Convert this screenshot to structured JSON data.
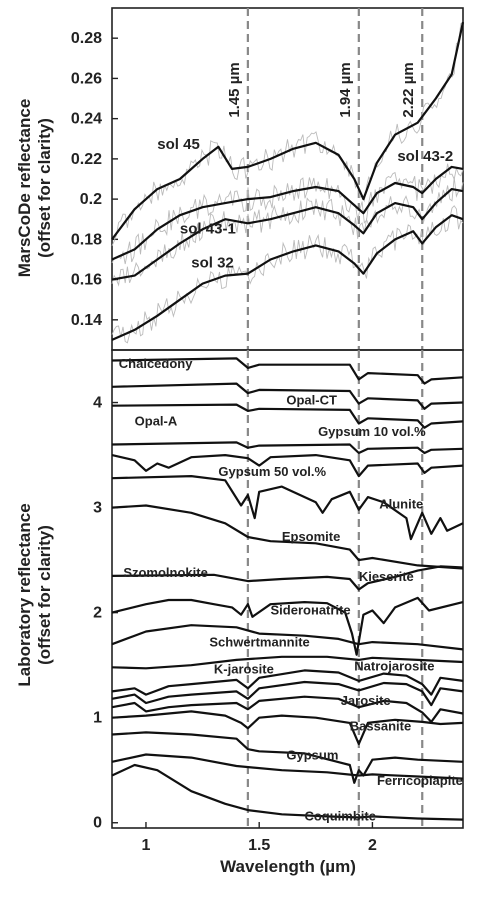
{
  "chart_data": [
    {
      "type": "line",
      "panel": "top",
      "ylabel": [
        "MarsCoDe reflectance",
        "(offset for clarity)"
      ],
      "xlim": [
        0.85,
        2.4
      ],
      "ylim": [
        0.125,
        0.295
      ],
      "yticks": [
        0.14,
        0.16,
        0.18,
        0.2,
        0.22,
        0.24,
        0.26,
        0.28
      ],
      "ytick_labels": [
        "0.14",
        "0.16",
        "0.18",
        "0.2",
        "0.22",
        "0.24",
        "0.26",
        "0.28"
      ],
      "reference_lines": [
        {
          "x": 1.45,
          "label": "1.45 µm"
        },
        {
          "x": 1.94,
          "label": "1.94 µm"
        },
        {
          "x": 2.22,
          "label": "2.22 µm"
        }
      ],
      "series": [
        {
          "name": "sol 45",
          "label_xy": [
            1.05,
            0.225
          ],
          "x": [
            0.85,
            0.95,
            1.05,
            1.15,
            1.25,
            1.32,
            1.38,
            1.45,
            1.55,
            1.65,
            1.75,
            1.85,
            1.92,
            1.96,
            2.02,
            2.1,
            2.2,
            2.28,
            2.35,
            2.4
          ],
          "y": [
            0.18,
            0.195,
            0.205,
            0.21,
            0.22,
            0.226,
            0.215,
            0.216,
            0.22,
            0.225,
            0.228,
            0.222,
            0.21,
            0.2,
            0.218,
            0.232,
            0.238,
            0.25,
            0.262,
            0.288
          ]
        },
        {
          "name": "sol 43-2",
          "label_xy": [
            2.11,
            0.219
          ],
          "x": [
            0.85,
            0.95,
            1.05,
            1.15,
            1.25,
            1.35,
            1.45,
            1.55,
            1.65,
            1.75,
            1.85,
            1.92,
            1.96,
            2.02,
            2.1,
            2.18,
            2.22,
            2.28,
            2.35,
            2.4
          ],
          "y": [
            0.17,
            0.175,
            0.185,
            0.192,
            0.196,
            0.198,
            0.2,
            0.201,
            0.204,
            0.206,
            0.204,
            0.197,
            0.193,
            0.203,
            0.208,
            0.206,
            0.203,
            0.21,
            0.216,
            0.215
          ]
        },
        {
          "name": "sol 43-1",
          "label_xy": [
            1.15,
            0.183
          ],
          "x": [
            0.85,
            0.95,
            1.05,
            1.15,
            1.25,
            1.35,
            1.45,
            1.55,
            1.65,
            1.75,
            1.85,
            1.92,
            1.96,
            2.02,
            2.1,
            2.18,
            2.22,
            2.28,
            2.35,
            2.4
          ],
          "y": [
            0.16,
            0.162,
            0.17,
            0.178,
            0.185,
            0.19,
            0.188,
            0.19,
            0.193,
            0.196,
            0.193,
            0.187,
            0.183,
            0.193,
            0.198,
            0.196,
            0.19,
            0.198,
            0.205,
            0.204
          ]
        },
        {
          "name": "sol 32",
          "label_xy": [
            1.2,
            0.166
          ],
          "x": [
            0.85,
            0.95,
            1.05,
            1.15,
            1.25,
            1.35,
            1.45,
            1.55,
            1.65,
            1.75,
            1.85,
            1.92,
            1.96,
            2.02,
            2.1,
            2.18,
            2.22,
            2.28,
            2.35,
            2.4
          ],
          "y": [
            0.13,
            0.135,
            0.142,
            0.15,
            0.158,
            0.162,
            0.163,
            0.17,
            0.174,
            0.177,
            0.174,
            0.168,
            0.163,
            0.173,
            0.18,
            0.184,
            0.178,
            0.186,
            0.192,
            0.19
          ]
        }
      ]
    },
    {
      "type": "line",
      "panel": "bottom",
      "ylabel": [
        "Laboratory reflectance",
        "(offset for clarity)"
      ],
      "xlabel": "Wavelength (µm)",
      "xlim": [
        0.85,
        2.4
      ],
      "ylim": [
        -0.05,
        4.5
      ],
      "xticks": [
        1,
        1.5,
        2
      ],
      "xtick_labels": [
        "1",
        "1.5",
        "2"
      ],
      "yticks": [
        0,
        1,
        2,
        3,
        4
      ],
      "ytick_labels": [
        "0",
        "1",
        "2",
        "3",
        "4"
      ],
      "series": [
        {
          "name": "Chalcedony",
          "label_xy": [
            0.88,
            4.33
          ],
          "x": [
            0.85,
            1.4,
            1.45,
            1.5,
            1.9,
            1.94,
            1.98,
            2.2,
            2.23,
            2.26,
            2.4
          ],
          "y": [
            4.4,
            4.42,
            4.33,
            4.36,
            4.36,
            4.22,
            4.28,
            4.26,
            4.18,
            4.22,
            4.24
          ]
        },
        {
          "name": "Opal-CT",
          "label_xy": [
            1.62,
            3.98
          ],
          "x": [
            0.85,
            1.4,
            1.45,
            1.5,
            1.9,
            1.94,
            1.98,
            2.2,
            2.23,
            2.26,
            2.4
          ],
          "y": [
            4.15,
            4.18,
            4.09,
            4.12,
            4.11,
            3.99,
            4.04,
            4.02,
            3.94,
            3.99,
            4.0
          ]
        },
        {
          "name": "Opal-A",
          "label_xy": [
            0.95,
            3.78
          ],
          "x": [
            0.85,
            1.4,
            1.45,
            1.5,
            1.9,
            1.94,
            1.98,
            2.2,
            2.23,
            2.26,
            2.4
          ],
          "y": [
            3.97,
            3.98,
            3.92,
            3.94,
            3.93,
            3.8,
            3.85,
            3.83,
            3.76,
            3.8,
            3.82
          ]
        },
        {
          "name": "Gypsum 10 vol.%",
          "label_xy": [
            1.76,
            3.68
          ],
          "x": [
            0.85,
            1.4,
            1.45,
            1.5,
            1.9,
            1.94,
            1.98,
            2.2,
            2.23,
            2.26,
            2.4
          ],
          "y": [
            3.6,
            3.62,
            3.57,
            3.59,
            3.6,
            3.52,
            3.56,
            3.57,
            3.52,
            3.55,
            3.56
          ]
        },
        {
          "name": "Gypsum 50 vol.%",
          "label_xy": [
            1.32,
            3.3
          ],
          "x": [
            0.85,
            0.95,
            1.0,
            1.05,
            1.1,
            1.2,
            1.35,
            1.45,
            1.5,
            1.55,
            1.75,
            1.9,
            1.94,
            1.98,
            2.2,
            2.23,
            2.26,
            2.4
          ],
          "y": [
            3.5,
            3.45,
            3.35,
            3.42,
            3.38,
            3.48,
            3.5,
            3.47,
            3.4,
            3.48,
            3.5,
            3.45,
            3.3,
            3.4,
            3.42,
            3.33,
            3.38,
            3.4
          ]
        },
        {
          "name": "Alunite",
          "label_xy": [
            2.03,
            2.99
          ],
          "x": [
            0.85,
            1.2,
            1.35,
            1.42,
            1.45,
            1.48,
            1.5,
            1.6,
            1.75,
            1.78,
            1.82,
            1.9,
            1.94,
            1.98,
            2.05,
            2.15,
            2.17,
            2.22,
            2.26,
            2.3,
            2.33,
            2.4
          ],
          "y": [
            3.28,
            3.3,
            3.26,
            3.02,
            3.12,
            2.9,
            3.15,
            3.2,
            3.05,
            2.95,
            3.08,
            3.15,
            2.98,
            3.1,
            3.05,
            2.9,
            2.7,
            2.95,
            2.75,
            2.9,
            2.78,
            2.85
          ]
        },
        {
          "name": "Epsomite",
          "label_xy": [
            1.6,
            2.68
          ],
          "x": [
            0.85,
            1.0,
            1.2,
            1.35,
            1.45,
            1.55,
            1.75,
            1.9,
            1.94,
            2.0,
            2.2,
            2.4
          ],
          "y": [
            3.0,
            3.02,
            2.95,
            2.85,
            2.72,
            2.68,
            2.66,
            2.6,
            2.5,
            2.52,
            2.45,
            2.42
          ]
        },
        {
          "name": "Kieserite",
          "label_xy": [
            1.94,
            2.3
          ],
          "x": [
            0.85,
            1.3,
            1.45,
            1.6,
            1.8,
            1.9,
            1.94,
            1.98,
            2.1,
            2.2,
            2.3,
            2.4
          ],
          "y": [
            2.35,
            2.36,
            2.3,
            2.32,
            2.34,
            2.32,
            2.22,
            2.28,
            2.34,
            2.4,
            2.44,
            2.43
          ]
        },
        {
          "name": "Szomolnokite",
          "label_xy": [
            0.9,
            2.34
          ],
          "x": [
            0.85,
            1.0,
            1.1,
            1.2,
            1.3,
            1.38,
            1.42,
            1.45,
            1.47,
            1.55,
            1.7,
            1.8,
            1.88,
            1.91,
            1.93,
            1.96,
            2.0,
            2.05,
            2.1,
            2.2,
            2.25,
            2.4
          ],
          "y": [
            2.0,
            2.08,
            2.12,
            2.12,
            2.08,
            2.05,
            1.98,
            2.08,
            1.96,
            2.08,
            2.1,
            2.09,
            2.0,
            1.8,
            1.6,
            1.98,
            2.02,
            1.9,
            2.05,
            2.14,
            2.02,
            2.1
          ]
        },
        {
          "name": "Siderонatrite",
          "label_xy": [
            1.55,
            1.98
          ],
          "x": [
            0.85,
            1.0,
            1.2,
            1.4,
            1.5,
            1.7,
            1.85,
            1.94,
            2.0,
            2.2,
            2.4
          ],
          "y": [
            1.7,
            1.82,
            1.88,
            1.86,
            1.8,
            1.78,
            1.75,
            1.7,
            1.72,
            1.7,
            1.65
          ]
        },
        {
          "name": "Schwertmannite",
          "label_xy": [
            1.28,
            1.68
          ],
          "x": [
            0.85,
            1.0,
            1.2,
            1.4,
            1.6,
            1.8,
            1.94,
            2.0,
            2.2,
            2.4
          ],
          "y": [
            1.48,
            1.47,
            1.5,
            1.55,
            1.58,
            1.58,
            1.55,
            1.57,
            1.55,
            1.53
          ]
        },
        {
          "name": "Natrojarosite",
          "label_xy": [
            1.92,
            1.45
          ],
          "x": [
            0.85,
            0.95,
            1.0,
            1.1,
            1.2,
            1.4,
            1.45,
            1.5,
            1.7,
            1.85,
            1.94,
            2.05,
            2.15,
            2.22,
            2.26,
            2.3,
            2.4
          ],
          "y": [
            1.25,
            1.28,
            1.22,
            1.3,
            1.32,
            1.36,
            1.28,
            1.38,
            1.45,
            1.43,
            1.35,
            1.42,
            1.4,
            1.32,
            1.22,
            1.38,
            1.35
          ]
        },
        {
          "name": "K-jarosite",
          "label_xy": [
            1.3,
            1.42
          ],
          "x": [
            0.85,
            0.95,
            1.0,
            1.1,
            1.2,
            1.4,
            1.45,
            1.5,
            1.7,
            1.85,
            1.94,
            2.05,
            2.15,
            2.22,
            2.26,
            2.3,
            2.4
          ],
          "y": [
            1.18,
            1.22,
            1.14,
            1.2,
            1.22,
            1.25,
            1.18,
            1.28,
            1.34,
            1.32,
            1.26,
            1.33,
            1.32,
            1.25,
            1.12,
            1.28,
            1.25
          ]
        },
        {
          "name": "Jarosite",
          "label_xy": [
            1.86,
            1.12
          ],
          "x": [
            0.85,
            0.95,
            1.0,
            1.1,
            1.2,
            1.4,
            1.45,
            1.5,
            1.7,
            1.85,
            1.94,
            2.05,
            2.15,
            2.22,
            2.26,
            2.3,
            2.4
          ],
          "y": [
            1.1,
            1.14,
            1.06,
            1.1,
            1.12,
            1.14,
            1.08,
            1.16,
            1.2,
            1.18,
            1.1,
            1.16,
            1.14,
            1.05,
            0.96,
            1.08,
            1.04
          ]
        },
        {
          "name": "Bassanite",
          "label_xy": [
            1.9,
            0.88
          ],
          "x": [
            0.85,
            1.0,
            1.2,
            1.35,
            1.42,
            1.45,
            1.5,
            1.6,
            1.75,
            1.9,
            1.94,
            1.98,
            2.1,
            2.22,
            2.3,
            2.4
          ],
          "y": [
            1.0,
            1.02,
            1.06,
            1.02,
            0.95,
            0.9,
            1.0,
            1.02,
            1.0,
            0.95,
            0.75,
            0.95,
            0.98,
            0.96,
            0.94,
            0.95
          ]
        },
        {
          "name": "Gypsum",
          "label_xy": [
            1.62,
            0.6
          ],
          "x": [
            0.85,
            1.0,
            1.2,
            1.4,
            1.45,
            1.5,
            1.7,
            1.9,
            1.92,
            1.94,
            1.96,
            2.0,
            2.1,
            2.2,
            2.4
          ],
          "y": [
            0.84,
            0.86,
            0.84,
            0.8,
            0.7,
            0.68,
            0.66,
            0.55,
            0.38,
            0.5,
            0.45,
            0.6,
            0.62,
            0.6,
            0.58
          ]
        },
        {
          "name": "Ferricopiapite",
          "label_xy": [
            2.02,
            0.36
          ],
          "x": [
            0.85,
            1.0,
            1.2,
            1.4,
            1.6,
            1.8,
            1.94,
            2.0,
            2.2,
            2.4
          ],
          "y": [
            0.58,
            0.65,
            0.62,
            0.54,
            0.5,
            0.48,
            0.45,
            0.46,
            0.44,
            0.42
          ]
        },
        {
          "name": "Coquimbite",
          "label_xy": [
            1.7,
            0.02
          ],
          "x": [
            0.85,
            0.95,
            1.05,
            1.2,
            1.35,
            1.45,
            1.6,
            1.8,
            1.94,
            2.0,
            2.2,
            2.4
          ],
          "y": [
            0.45,
            0.55,
            0.5,
            0.3,
            0.18,
            0.12,
            0.08,
            0.06,
            0.05,
            0.06,
            0.04,
            0.03
          ]
        }
      ]
    }
  ]
}
